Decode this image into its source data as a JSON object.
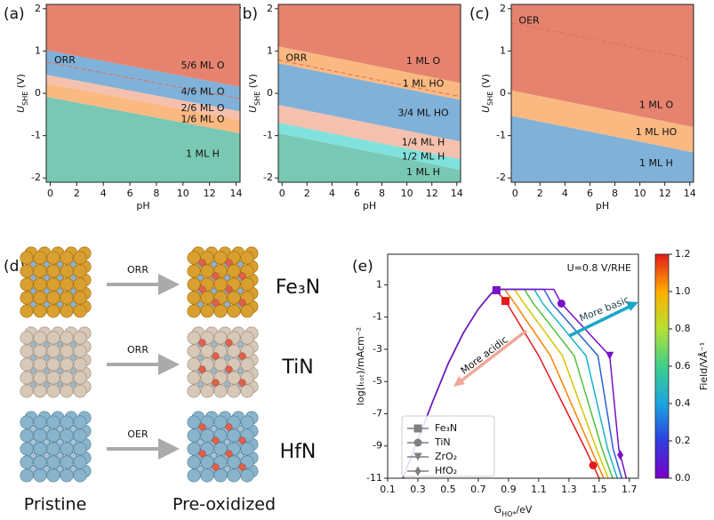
{
  "panels": {
    "a": "(a)",
    "b": "(b)",
    "c": "(c)",
    "d": "(d)",
    "e": "(e)"
  },
  "structures": {
    "rows": [
      {
        "process": "ORR",
        "material": "Fe₃N"
      },
      {
        "process": "ORR",
        "material": "TiN"
      },
      {
        "process": "OER",
        "material": "HfN"
      }
    ],
    "columns": [
      "Pristine",
      "Pre-oxidized"
    ]
  },
  "chart_data": [
    {
      "type": "phase",
      "xlabel": "pH",
      "ylabel": {
        "text": "U",
        "sub": "SHE",
        "rest": " (V)"
      },
      "xlim": [
        -0.3,
        14.3
      ],
      "ylim": [
        -2.1,
        2.1
      ],
      "xticks": [
        0,
        2,
        4,
        6,
        8,
        10,
        12,
        14
      ],
      "yticks": [
        -2,
        -1,
        0,
        1,
        2
      ],
      "x": [
        0,
        14
      ],
      "regions": [
        {
          "name": "5/6 ML O",
          "color": "#e5836f",
          "lower": [
            1.0,
            0.17
          ]
        },
        {
          "name": "4/6 ML O",
          "color": "#80b1d9",
          "lower": [
            0.42,
            -0.41
          ]
        },
        {
          "name": "2/6 ML O",
          "color": "#f5c1ae",
          "lower": [
            0.22,
            -0.61
          ]
        },
        {
          "name": "1/6 ML O",
          "color": "#fbb982",
          "lower": [
            -0.1,
            -0.93
          ]
        },
        {
          "name": "1 ML H",
          "color": "#79c8b4",
          "lower": null
        }
      ],
      "reference": {
        "name": "ORR",
        "color": "#e0704f",
        "values": [
          0.72,
          -0.11
        ]
      }
    },
    {
      "type": "phase",
      "xlabel": "pH",
      "ylabel": {
        "text": "U",
        "sub": "SHE",
        "rest": " (V)"
      },
      "xlim": [
        -0.3,
        14.3
      ],
      "ylim": [
        -2.1,
        2.1
      ],
      "xticks": [
        0,
        2,
        4,
        6,
        8,
        10,
        12,
        14
      ],
      "yticks": [
        -2,
        -1,
        0,
        1,
        2
      ],
      "x": [
        0,
        14
      ],
      "regions": [
        {
          "name": "1 ML O",
          "color": "#e5836f",
          "lower": [
            1.09,
            0.26
          ]
        },
        {
          "name": "1 ML HO",
          "color": "#fbb982",
          "lower": [
            0.69,
            -0.14
          ]
        },
        {
          "name": "3/4 ML HO",
          "color": "#80b1d9",
          "lower": [
            -0.29,
            -1.12
          ]
        },
        {
          "name": "1/4 ML H",
          "color": "#f5c1ae",
          "lower": [
            -0.71,
            -1.54
          ]
        },
        {
          "name": "1/2 ML H",
          "color": "#80e2dc",
          "lower": [
            -0.96,
            -1.79
          ]
        },
        {
          "name": "1 ML H",
          "color": "#79c8b4",
          "lower": null
        }
      ],
      "reference": {
        "name": "ORR",
        "color": "#e0704f",
        "values": [
          0.77,
          -0.06
        ]
      }
    },
    {
      "type": "phase",
      "xlabel": "pH",
      "ylabel": {
        "text": "U",
        "sub": "SHE",
        "rest": " (V)"
      },
      "xlim": [
        -0.3,
        14.3
      ],
      "ylim": [
        -2.1,
        2.1
      ],
      "xticks": [
        0,
        2,
        4,
        6,
        8,
        10,
        12,
        14
      ],
      "yticks": [
        -2,
        -1,
        0,
        1,
        2
      ],
      "x": [
        0,
        14
      ],
      "regions": [
        {
          "name": "1 ML O",
          "color": "#e5836f",
          "lower": [
            0.05,
            -0.78
          ]
        },
        {
          "name": "1 ML HO",
          "color": "#fbb982",
          "lower": [
            -0.55,
            -1.38
          ]
        },
        {
          "name": "1 ML H",
          "color": "#80b1d9",
          "lower": null
        }
      ],
      "reference": {
        "name": "OER",
        "color": "#e0704f",
        "values": [
          1.65,
          0.82
        ]
      }
    },
    {
      "type": "line",
      "xlabel": {
        "text": "G",
        "sub": "HO*",
        "rest": "/eV"
      },
      "ylabel": "log(iₜₒₜ)/mAcm⁻²",
      "xlim": [
        0.1,
        1.76
      ],
      "ylim": [
        -11,
        2.9
      ],
      "xticks": [
        0.1,
        0.3,
        0.5,
        0.7,
        0.9,
        1.1,
        1.3,
        1.5,
        1.7
      ],
      "yticks": [
        1,
        -1,
        -3,
        -5,
        -7,
        -9,
        -11
      ],
      "series": [
        {
          "color": "#e41a1c",
          "x": [
            0.2,
            0.3,
            0.4,
            0.5,
            0.6,
            0.7,
            0.78,
            0.81,
            0.88,
            1.1,
            1.41,
            1.5
          ],
          "values": [
            -11,
            -8.6,
            -6.2,
            -3.9,
            -2.0,
            -0.5,
            0.4,
            0.72,
            0,
            -3.4,
            -9.2,
            -11
          ]
        },
        {
          "color": "#ff8000",
          "x": [
            0.2,
            0.3,
            0.4,
            0.5,
            0.6,
            0.7,
            0.78,
            0.82,
            0.875,
            0.942,
            1.178,
            1.447,
            1.53
          ],
          "values": [
            -11,
            -8.6,
            -6.2,
            -3.9,
            -2.0,
            -0.5,
            0.4,
            0.72,
            0.72,
            -0.16,
            -3.4,
            -9.2,
            -11
          ]
        },
        {
          "color": "#d6c400",
          "x": [
            0.2,
            0.3,
            0.4,
            0.5,
            0.6,
            0.7,
            0.78,
            0.82,
            0.94,
            1.003,
            1.257,
            1.483,
            1.56
          ],
          "values": [
            -11,
            -8.6,
            -6.2,
            -3.9,
            -2.0,
            -0.5,
            0.4,
            0.72,
            0.72,
            -0.16,
            -3.4,
            -9.2,
            -11
          ]
        },
        {
          "color": "#4fc23a",
          "x": [
            0.2,
            0.3,
            0.4,
            0.5,
            0.6,
            0.7,
            0.78,
            0.82,
            1.005,
            1.065,
            1.335,
            1.52,
            1.59
          ],
          "values": [
            -11,
            -8.6,
            -6.2,
            -3.9,
            -2.0,
            -0.5,
            0.4,
            0.72,
            0.72,
            -0.16,
            -3.4,
            -9.2,
            -11
          ]
        },
        {
          "color": "#1ab3c8",
          "x": [
            0.2,
            0.3,
            0.4,
            0.5,
            0.6,
            0.7,
            0.78,
            0.82,
            1.07,
            1.127,
            1.413,
            1.557,
            1.62
          ],
          "values": [
            -11,
            -8.6,
            -6.2,
            -3.9,
            -2.0,
            -0.5,
            0.4,
            0.72,
            0.72,
            -0.16,
            -3.4,
            -9.2,
            -11
          ]
        },
        {
          "color": "#2a5fd6",
          "x": [
            0.2,
            0.3,
            0.4,
            0.5,
            0.6,
            0.7,
            0.78,
            0.82,
            1.135,
            1.188,
            1.492,
            1.593,
            1.65
          ],
          "values": [
            -11,
            -8.6,
            -6.2,
            -3.9,
            -2.0,
            -0.5,
            0.4,
            0.72,
            0.72,
            -0.16,
            -3.4,
            -9.2,
            -11
          ]
        },
        {
          "color": "#7a10c8",
          "x": [
            0.2,
            0.3,
            0.4,
            0.5,
            0.6,
            0.7,
            0.78,
            0.82,
            1.2,
            1.25,
            1.57,
            1.63,
            1.68
          ],
          "values": [
            -11,
            -8.6,
            -6.2,
            -3.9,
            -2.0,
            -0.5,
            0.4,
            0.72,
            0.72,
            -0.16,
            -3.4,
            -9.2,
            -11
          ]
        }
      ],
      "markers": [
        {
          "name": "Fe₃N",
          "shape": "square",
          "x": [
            0.82,
            0.88
          ],
          "values": [
            0.67,
            0
          ],
          "colors": [
            "#7a10c8",
            "#e41a1c"
          ]
        },
        {
          "name": "TiN",
          "shape": "circle",
          "x": [
            1.25,
            1.46
          ],
          "values": [
            -0.16,
            -10.2
          ],
          "colors": [
            "#7a10c8",
            "#e41a1c"
          ]
        },
        {
          "name": "ZrO₂",
          "shape": "triangle",
          "x": [
            1.57
          ],
          "values": [
            -3.4
          ],
          "colors": [
            "#7a10c8"
          ]
        },
        {
          "name": "HfO₂",
          "shape": "diamond",
          "x": [
            1.64
          ],
          "values": [
            -9.56
          ],
          "colors": [
            "#7a10c8"
          ]
        }
      ],
      "legend_color": "#7f7f7f",
      "annotations": {
        "condition": "U=0.8 V/RHE",
        "basic": "More basic",
        "acidic": "More acidic"
      },
      "colorbar": {
        "label": "Field/VÅ⁻¹",
        "lim": [
          0,
          1.2
        ],
        "ticks": [
          {
            "value": 0,
            "label": "0.0"
          },
          {
            "value": 0.2,
            "label": "0.2"
          },
          {
            "value": 0.4,
            "label": "0.4"
          },
          {
            "value": 0.6,
            "label": "0.6"
          },
          {
            "value": 0.8,
            "label": "0.8"
          },
          {
            "value": 1.0,
            "label": "1.0"
          },
          {
            "value": 1.2,
            "label": "1.2"
          }
        ]
      }
    }
  ]
}
